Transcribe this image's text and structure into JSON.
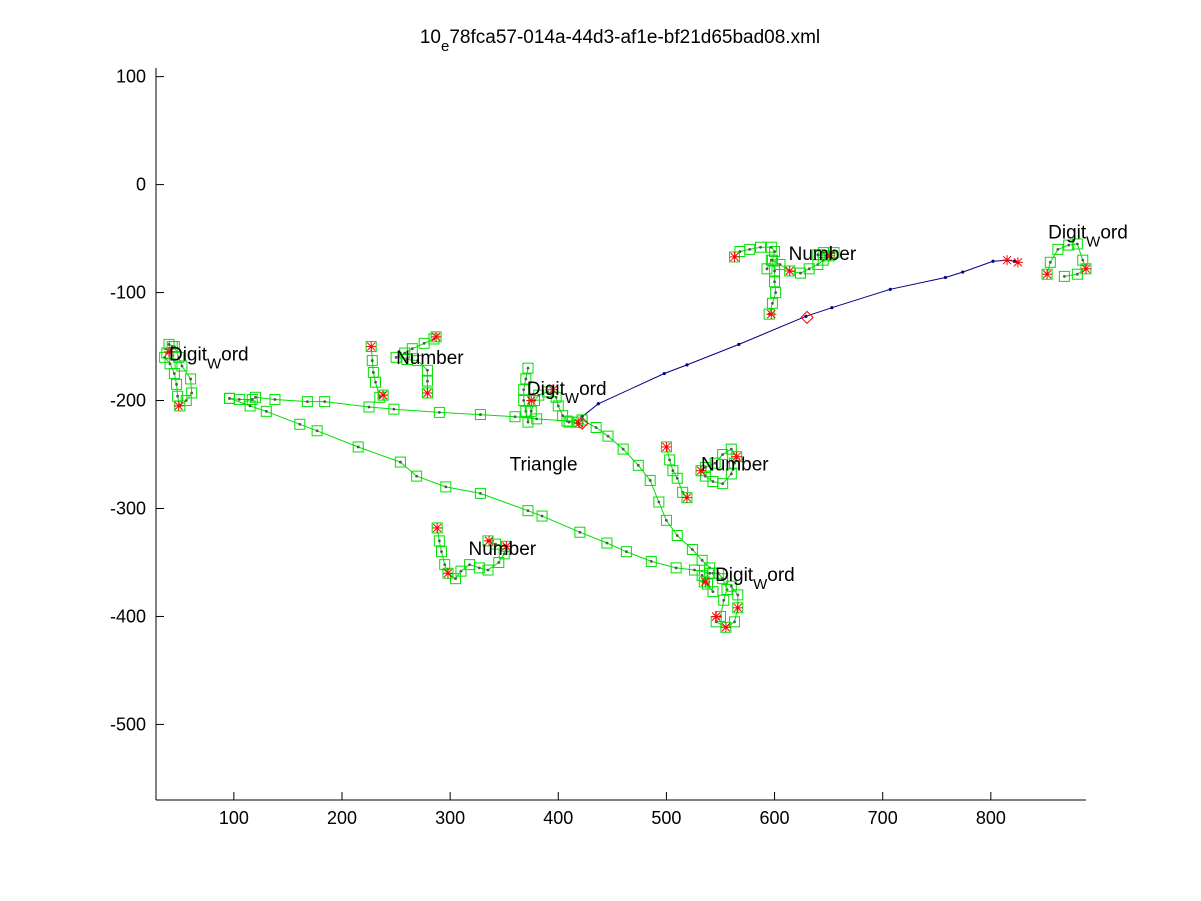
{
  "chart_data": {
    "type": "scatter",
    "title": {
      "main": "10",
      "sub": "e",
      "rest": "78fca57-014a-44d3-af1e-bf21d65bad08.xml"
    },
    "xlabel": "",
    "ylabel": "",
    "xlim": [
      28,
      888
    ],
    "ylim": [
      -570,
      108
    ],
    "xticks": [
      100,
      200,
      300,
      400,
      500,
      600,
      700,
      800
    ],
    "yticks": [
      100,
      0,
      -100,
      -200,
      -300,
      -400,
      -500
    ],
    "grid": false,
    "colors": {
      "stroke": "#00e000",
      "blue": "#000080",
      "red": "#ff0000",
      "dot": "#555555"
    },
    "annotations": [
      {
        "parts": [
          [
            "Digit",
            ""
          ],
          [
            "W",
            "sub"
          ],
          [
            "ord",
            ""
          ]
        ],
        "x": 40,
        "y": -163
      },
      {
        "parts": [
          [
            "Number",
            ""
          ]
        ],
        "x": 250,
        "y": -166
      },
      {
        "parts": [
          [
            "Digit",
            ""
          ],
          [
            "W",
            "sub"
          ],
          [
            "ord",
            ""
          ]
        ],
        "x": 371,
        "y": -195
      },
      {
        "parts": [
          [
            "Triangle",
            ""
          ]
        ],
        "x": 355,
        "y": -265
      },
      {
        "parts": [
          [
            "Number",
            ""
          ]
        ],
        "x": 613,
        "y": -70
      },
      {
        "parts": [
          [
            "Digit",
            ""
          ],
          [
            "W",
            "sub"
          ],
          [
            "ord",
            ""
          ]
        ],
        "x": 853,
        "y": -50
      },
      {
        "parts": [
          [
            "Number",
            ""
          ]
        ],
        "x": 532,
        "y": -265
      },
      {
        "parts": [
          [
            "Number",
            ""
          ]
        ],
        "x": 317,
        "y": -343
      },
      {
        "parts": [
          [
            "Digit",
            ""
          ],
          [
            "W",
            "sub"
          ],
          [
            "ord",
            ""
          ]
        ],
        "x": 545,
        "y": -367
      }
    ],
    "series": [
      {
        "style": "blue-line",
        "points": [
          [
            422,
            -215
          ],
          [
            437,
            -203
          ],
          [
            498,
            -175
          ],
          [
            519,
            -167
          ],
          [
            567,
            -148
          ],
          [
            629,
            -122
          ],
          [
            653,
            -114
          ],
          [
            707,
            -97
          ],
          [
            758,
            -86
          ],
          [
            774,
            -81
          ],
          [
            802,
            -71
          ],
          [
            815,
            -70
          ],
          [
            822,
            -71
          ],
          [
            825,
            -72
          ]
        ]
      },
      {
        "style": "green-box",
        "points": [
          [
            422,
            -218
          ],
          [
            435,
            -225
          ],
          [
            446,
            -233
          ],
          [
            460,
            -245
          ],
          [
            474,
            -260
          ],
          [
            485,
            -274
          ],
          [
            493,
            -294
          ],
          [
            500,
            -311
          ],
          [
            510,
            -325
          ],
          [
            524,
            -338
          ],
          [
            533,
            -348
          ],
          [
            540,
            -355
          ]
        ]
      },
      {
        "style": "green-box",
        "points": [
          [
            540,
            -360
          ],
          [
            526,
            -357
          ],
          [
            509,
            -355
          ],
          [
            486,
            -349
          ],
          [
            463,
            -340
          ],
          [
            445,
            -332
          ],
          [
            420,
            -322
          ],
          [
            385,
            -307
          ],
          [
            372,
            -302
          ],
          [
            328,
            -286
          ],
          [
            296,
            -280
          ],
          [
            269,
            -270
          ],
          [
            254,
            -257
          ],
          [
            215,
            -243
          ],
          [
            177,
            -228
          ],
          [
            161,
            -222
          ],
          [
            130,
            -210
          ],
          [
            115,
            -205
          ],
          [
            96,
            -198
          ]
        ]
      },
      {
        "style": "green-box",
        "points": [
          [
            96,
            -198
          ],
          [
            105,
            -199
          ],
          [
            117,
            -199
          ],
          [
            120,
            -197
          ],
          [
            138,
            -199
          ],
          [
            168,
            -201
          ],
          [
            184,
            -201
          ],
          [
            225,
            -206
          ],
          [
            248,
            -208
          ],
          [
            290,
            -211
          ],
          [
            328,
            -213
          ],
          [
            360,
            -215
          ],
          [
            380,
            -217
          ],
          [
            408,
            -219
          ],
          [
            422,
            -218
          ]
        ]
      },
      {
        "style": "green-box",
        "points": [
          [
            43,
            -150
          ],
          [
            38,
            -156
          ],
          [
            36,
            -160
          ],
          [
            41,
            -166
          ],
          [
            45,
            -175
          ],
          [
            47,
            -185
          ],
          [
            48,
            -196
          ],
          [
            50,
            -205
          ],
          [
            56,
            -200
          ],
          [
            61,
            -193
          ],
          [
            60,
            -180
          ],
          [
            52,
            -168
          ],
          [
            49,
            -160
          ],
          [
            45,
            -150
          ],
          [
            40,
            -148
          ]
        ]
      },
      {
        "style": "green-box",
        "points": [
          [
            227,
            -150
          ],
          [
            228,
            -163
          ],
          [
            229,
            -174
          ],
          [
            231,
            -183
          ],
          [
            235,
            -197
          ],
          [
            238,
            -195
          ]
        ]
      },
      {
        "style": "green-box",
        "points": [
          [
            250,
            -160
          ],
          [
            258,
            -156
          ],
          [
            265,
            -152
          ],
          [
            276,
            -147
          ],
          [
            285,
            -143
          ],
          [
            287,
            -141
          ]
        ]
      },
      {
        "style": "green-box",
        "points": [
          [
            260,
            -162
          ],
          [
            270,
            -163
          ],
          [
            279,
            -172
          ],
          [
            279,
            -182
          ],
          [
            279,
            -193
          ]
        ]
      },
      {
        "style": "green-box",
        "points": [
          [
            372,
            -170
          ],
          [
            370,
            -180
          ],
          [
            368,
            -190
          ],
          [
            368,
            -200
          ],
          [
            370,
            -210
          ],
          [
            372,
            -220
          ],
          [
            375,
            -210
          ],
          [
            378,
            -200
          ],
          [
            382,
            -195
          ],
          [
            390,
            -192
          ],
          [
            398,
            -197
          ],
          [
            400,
            -205
          ],
          [
            404,
            -214
          ],
          [
            410,
            -220
          ],
          [
            418,
            -220
          ]
        ]
      },
      {
        "style": "green-box",
        "points": [
          [
            563,
            -67
          ],
          [
            568,
            -62
          ],
          [
            577,
            -60
          ],
          [
            587,
            -58
          ],
          [
            597,
            -58
          ],
          [
            600,
            -62
          ],
          [
            598,
            -70
          ],
          [
            600,
            -80
          ],
          [
            600,
            -90
          ],
          [
            601,
            -100
          ],
          [
            598,
            -110
          ],
          [
            595,
            -120
          ]
        ]
      },
      {
        "style": "green-box",
        "points": [
          [
            593,
            -78
          ],
          [
            597,
            -70
          ],
          [
            605,
            -74
          ],
          [
            614,
            -80
          ],
          [
            624,
            -82
          ],
          [
            632,
            -78
          ],
          [
            640,
            -74
          ],
          [
            645,
            -70
          ],
          [
            651,
            -66
          ],
          [
            655,
            -63
          ],
          [
            645,
            -63
          ],
          [
            640,
            -65
          ]
        ]
      },
      {
        "style": "green-box",
        "points": [
          [
            852,
            -83
          ],
          [
            855,
            -72
          ],
          [
            862,
            -60
          ],
          [
            872,
            -56
          ],
          [
            880,
            -55
          ],
          [
            885,
            -70
          ],
          [
            888,
            -78
          ],
          [
            880,
            -83
          ],
          [
            868,
            -85
          ]
        ]
      },
      {
        "style": "green-box",
        "points": [
          [
            500,
            -243
          ],
          [
            503,
            -255
          ],
          [
            506,
            -265
          ],
          [
            510,
            -272
          ],
          [
            515,
            -285
          ],
          [
            519,
            -290
          ]
        ]
      },
      {
        "style": "green-box",
        "points": [
          [
            532,
            -265
          ],
          [
            536,
            -270
          ],
          [
            543,
            -275
          ],
          [
            552,
            -277
          ],
          [
            560,
            -268
          ],
          [
            563,
            -258
          ],
          [
            565,
            -252
          ],
          [
            560,
            -245
          ],
          [
            552,
            -250
          ],
          [
            545,
            -258
          ],
          [
            536,
            -262
          ]
        ]
      },
      {
        "style": "green-box",
        "points": [
          [
            288,
            -318
          ],
          [
            290,
            -330
          ],
          [
            292,
            -340
          ],
          [
            295,
            -352
          ],
          [
            298,
            -360
          ],
          [
            305,
            -365
          ],
          [
            310,
            -358
          ],
          [
            318,
            -352
          ],
          [
            327,
            -355
          ],
          [
            335,
            -357
          ],
          [
            345,
            -350
          ],
          [
            350,
            -342
          ],
          [
            352,
            -335
          ],
          [
            342,
            -333
          ],
          [
            335,
            -330
          ]
        ]
      },
      {
        "style": "green-box",
        "points": [
          [
            543,
            -360
          ],
          [
            548,
            -360
          ],
          [
            552,
            -365
          ],
          [
            556,
            -375
          ],
          [
            553,
            -385
          ],
          [
            550,
            -400
          ],
          [
            546,
            -405
          ],
          [
            555,
            -410
          ],
          [
            563,
            -405
          ],
          [
            566,
            -392
          ],
          [
            566,
            -380
          ],
          [
            560,
            -372
          ]
        ]
      },
      {
        "style": "green-box",
        "points": [
          [
            533,
            -362
          ],
          [
            538,
            -370
          ],
          [
            543,
            -377
          ],
          [
            535,
            -368
          ]
        ]
      }
    ],
    "red_markers": [
      [
        40,
        -155
      ],
      [
        49,
        -205
      ],
      [
        227,
        -150
      ],
      [
        238,
        -195
      ],
      [
        287,
        -141
      ],
      [
        279,
        -193
      ],
      [
        375,
        -200
      ],
      [
        395,
        -190
      ],
      [
        419,
        -221
      ],
      [
        563,
        -67
      ],
      [
        597,
        -120
      ],
      [
        614,
        -80
      ],
      [
        651,
        -66
      ],
      [
        815,
        -70
      ],
      [
        825,
        -72
      ],
      [
        852,
        -83
      ],
      [
        888,
        -78
      ],
      [
        500,
        -243
      ],
      [
        519,
        -290
      ],
      [
        532,
        -265
      ],
      [
        565,
        -252
      ],
      [
        288,
        -318
      ],
      [
        298,
        -360
      ],
      [
        336,
        -330
      ],
      [
        352,
        -335
      ],
      [
        536,
        -368
      ],
      [
        546,
        -400
      ],
      [
        555,
        -410
      ],
      [
        566,
        -392
      ]
    ],
    "diamond_markers": [
      [
        630,
        -123
      ],
      [
        422,
        -221
      ]
    ]
  }
}
